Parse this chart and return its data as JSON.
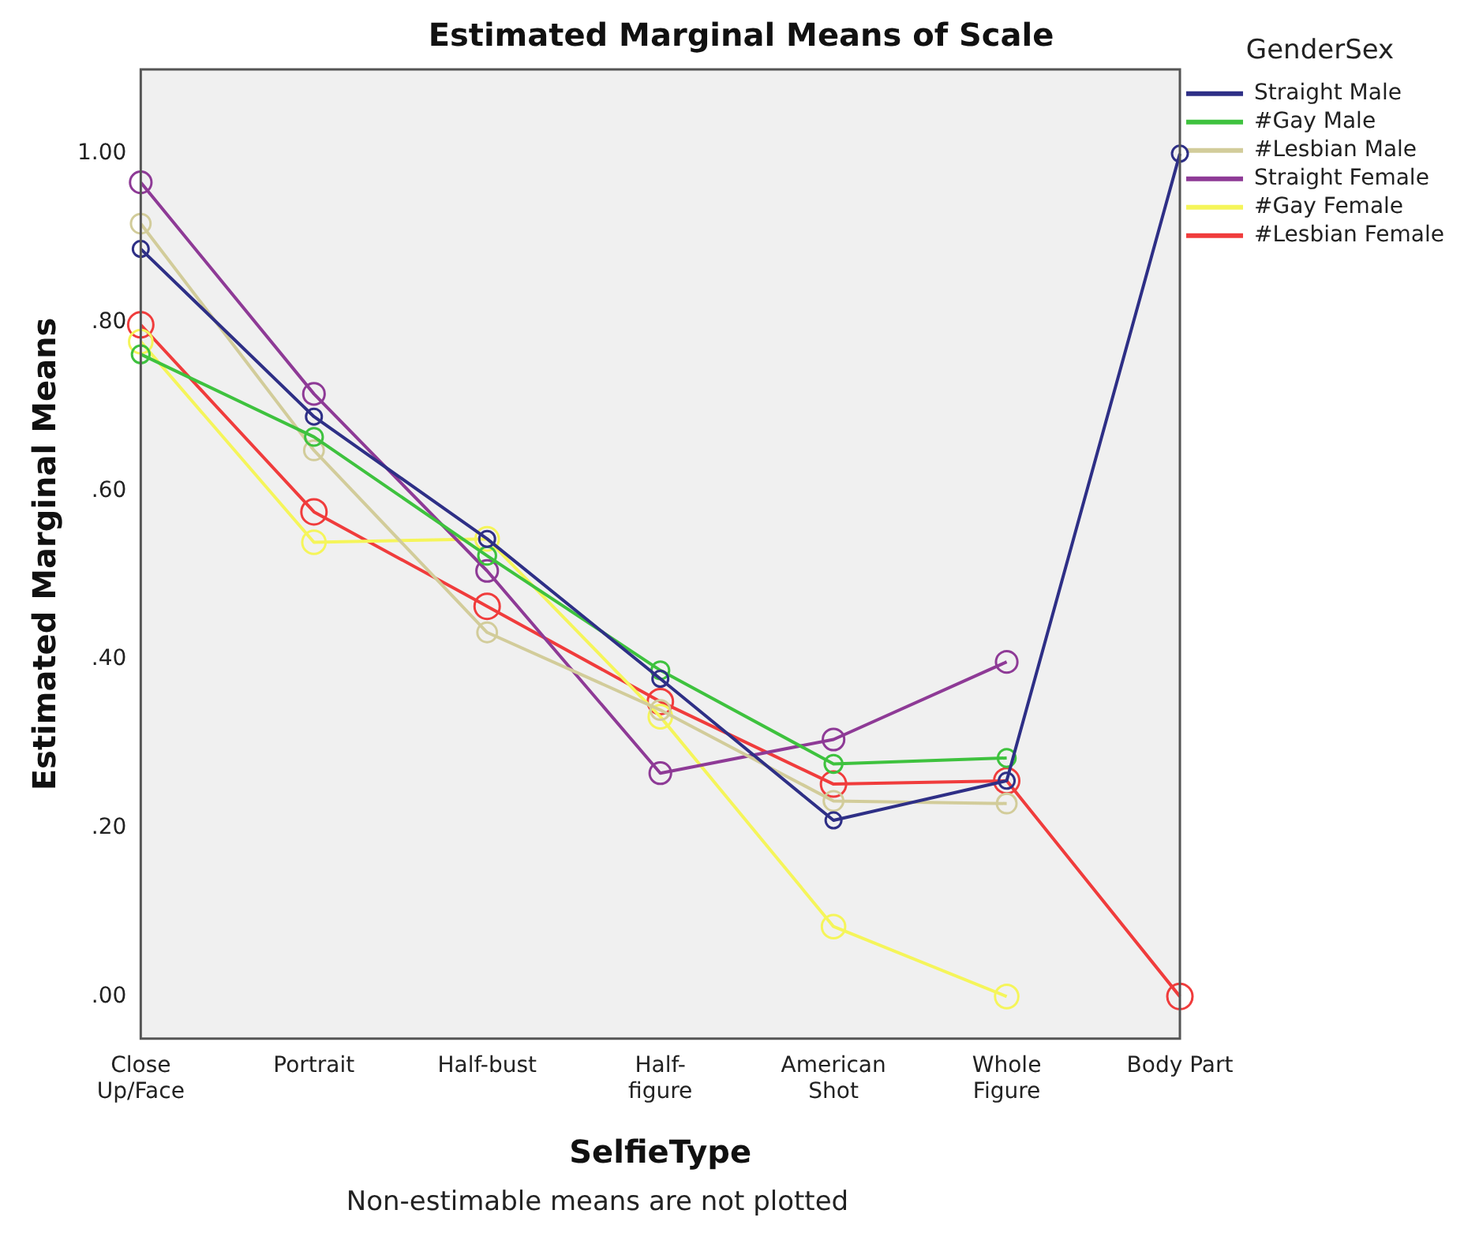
{
  "chart_data": {
    "type": "line",
    "title": "Estimated Marginal Means of Scale",
    "xlabel": "SelfieType",
    "ylabel": "Estimated Marginal Means",
    "legend_title": "GenderSex",
    "legend": "top right",
    "marker": "circle",
    "grid": false,
    "categories": [
      "Close Up/Face",
      "Portrait",
      "Half-bust",
      "Half-figure",
      "American Shot",
      "Whole Figure",
      "Body Part"
    ],
    "ylim": [
      -0.05,
      1.1
    ],
    "yticks": [
      {
        "value": 0,
        "label": ".00"
      },
      {
        "value": 0.2,
        "label": ".20"
      },
      {
        "value": 0.4,
        "label": ".40"
      },
      {
        "value": 0.6,
        "label": ".60"
      },
      {
        "value": 0.8,
        "label": ".80"
      },
      {
        "value": 1,
        "label": "1.00"
      }
    ],
    "series": [
      {
        "name": "Straight Male",
        "color": "#2e2f86",
        "values": [
          0.887,
          0.688,
          0.543,
          0.377,
          0.209,
          0.256,
          1.0
        ]
      },
      {
        "name": "#Gay Male",
        "color": "#3ec23e",
        "values": [
          0.762,
          0.664,
          0.523,
          0.387,
          0.276,
          0.283,
          null
        ]
      },
      {
        "name": "#Lesbian Male",
        "color": "#d2cc9a",
        "values": [
          0.917,
          0.648,
          0.432,
          0.34,
          0.232,
          0.229,
          null
        ]
      },
      {
        "name": "Straight Female",
        "color": "#8e3a96",
        "values": [
          0.966,
          0.715,
          0.505,
          0.265,
          0.305,
          0.397,
          null
        ]
      },
      {
        "name": "#Gay Female",
        "color": "#f5f55a",
        "values": [
          0.777,
          0.539,
          0.543,
          0.332,
          0.083,
          0.0,
          null
        ]
      },
      {
        "name": "#Lesbian Female",
        "color": "#f03c3c",
        "values": [
          0.797,
          0.575,
          0.463,
          0.35,
          0.252,
          0.256,
          0.0
        ]
      }
    ],
    "annotations": [
      "Non-estimable means are not plotted"
    ]
  }
}
